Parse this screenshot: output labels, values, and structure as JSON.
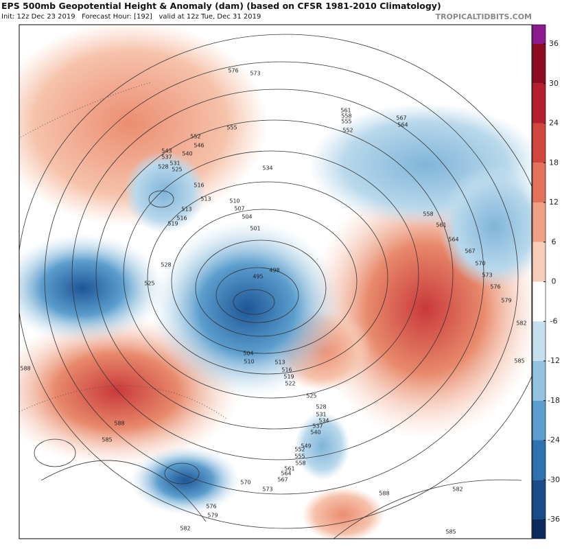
{
  "header": {
    "title": "EPS 500mb Geopotential Height & Anomaly (dam) (based on CFSR 1981-2010 Climatology)",
    "subtitle": "Init: 12z Dec 23 2019   Forecast Hour: [192]   valid at 12z Tue, Dec 31 2019",
    "brand": "TROPICALTIDBITS.COM"
  },
  "colorbar": {
    "ticks": [
      36,
      30,
      24,
      18,
      12,
      6,
      0,
      -6,
      -12,
      -18,
      -24,
      -30,
      -36
    ],
    "colors": [
      "#8b1a8f",
      "#8e0c1f",
      "#b51f2e",
      "#d1463e",
      "#e2735a",
      "#efa085",
      "#f8cdb8",
      "#ffffff",
      "#c5dfee",
      "#94c3df",
      "#5c9ecd",
      "#2f72b1",
      "#1a4c8a",
      "#0c2a5e"
    ]
  },
  "contour_labels": [
    576,
    573,
    555,
    552,
    546,
    543,
    540,
    537,
    534,
    531,
    528,
    525,
    516,
    513,
    513,
    516,
    519,
    510,
    507,
    504,
    501,
    498,
    495,
    528,
    525,
    588,
    588,
    585,
    561,
    558,
    555,
    552,
    567,
    564,
    558,
    561,
    564,
    567,
    570,
    573,
    576,
    579,
    582,
    585,
    582,
    585,
    588,
    582,
    579,
    576,
    570,
    573,
    567,
    564,
    561,
    558,
    555,
    552,
    549,
    540,
    537,
    534,
    531,
    528,
    525,
    522,
    519,
    516,
    513,
    510,
    504
  ]
}
